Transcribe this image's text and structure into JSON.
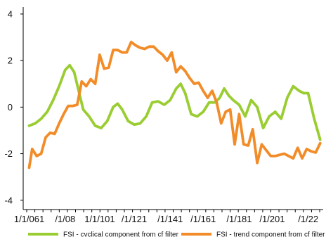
{
  "chart_data": {
    "type": "line",
    "title": "",
    "xlabel": "",
    "ylabel": "",
    "ylim": [
      -4.4,
      4.3
    ],
    "yticks": [
      -4,
      -2,
      0,
      2,
      4
    ],
    "ytick_labels": [
      "-4",
      "-2",
      "0",
      "2",
      "4"
    ],
    "xlim": [
      0,
      100
    ],
    "xticks": [
      2,
      14,
      25.5,
      37,
      49,
      60,
      72,
      83,
      95
    ],
    "xtick_labels": [
      "1/1/061",
      "/1/08",
      "1/1/101",
      "/1/121",
      "/1/141",
      "/1/161",
      "/1/181",
      "/1/201",
      "/1/22"
    ],
    "legend_position": "bottom",
    "grid": false,
    "series": [
      {
        "name": "FSI - cvclical component from cf filter",
        "color": "#9acd32",
        "x": [
          2,
          4,
          6,
          8,
          10,
          12,
          14,
          15.5,
          17,
          18.5,
          20,
          22,
          24,
          26,
          28,
          30,
          31.5,
          33,
          35,
          37,
          39,
          41,
          43,
          45,
          47,
          49,
          51,
          52.5,
          54,
          56,
          58,
          60,
          62,
          64,
          65.5,
          67,
          68.5,
          70,
          72,
          74,
          76,
          78,
          80,
          82,
          84,
          86,
          88,
          90,
          92,
          93.5,
          95,
          97,
          99
        ],
        "y": [
          -0.8,
          -0.7,
          -0.5,
          -0.2,
          0.3,
          0.9,
          1.6,
          1.8,
          1.5,
          0.7,
          -0.1,
          -0.4,
          -0.8,
          -0.9,
          -0.6,
          0.0,
          0.15,
          -0.1,
          -0.6,
          -0.75,
          -0.7,
          -0.4,
          0.2,
          0.25,
          0.1,
          0.3,
          0.8,
          1.0,
          0.6,
          -0.3,
          -0.4,
          -0.2,
          0.2,
          0.2,
          0.4,
          0.8,
          0.5,
          0.3,
          0.1,
          -0.4,
          0.3,
          0.0,
          -0.9,
          -0.4,
          -0.2,
          -0.5,
          0.4,
          0.9,
          0.7,
          0.6,
          0.6,
          -0.5,
          -1.4
        ]
      },
      {
        "name": "FSI - trend component from cf filter",
        "color": "#f28c28",
        "x": [
          2,
          3,
          4.5,
          6,
          7.5,
          9,
          10.5,
          12,
          13.5,
          15,
          16.5,
          18,
          19.5,
          21,
          22.5,
          24,
          25.5,
          27,
          28.5,
          30,
          31.5,
          33,
          34.5,
          36,
          37.5,
          39,
          40.5,
          42,
          43.5,
          45,
          46.5,
          48,
          49.5,
          51,
          52.5,
          54,
          55.5,
          57,
          58.5,
          60,
          61.5,
          63,
          64.5,
          66,
          67.5,
          69,
          70.5,
          72,
          73.5,
          75,
          76.5,
          78,
          79.5,
          81,
          82.5,
          84,
          85.5,
          87,
          88.5,
          90,
          91.5,
          93,
          94.5,
          96,
          97.5,
          99
        ],
        "y": [
          -2.6,
          -1.8,
          -2.1,
          -2.0,
          -1.3,
          -1.1,
          -1.15,
          -0.7,
          -0.3,
          0.05,
          0.05,
          0.1,
          1.1,
          0.9,
          1.2,
          1.0,
          2.25,
          1.65,
          1.7,
          2.45,
          2.45,
          2.35,
          2.35,
          2.8,
          2.65,
          2.55,
          2.5,
          2.6,
          2.6,
          2.4,
          2.25,
          2.0,
          2.35,
          1.5,
          1.75,
          1.55,
          1.25,
          1.0,
          1.05,
          0.7,
          0.4,
          0.7,
          0.2,
          -0.7,
          -0.2,
          -0.1,
          -1.6,
          -0.3,
          -1.6,
          -1.65,
          -0.95,
          -2.4,
          -1.6,
          -1.85,
          -2.1,
          -2.1,
          -2.05,
          -2.0,
          -2.1,
          -2.2,
          -1.75,
          -2.2,
          -1.8,
          -1.9,
          -1.95,
          -1.55
        ]
      }
    ]
  }
}
